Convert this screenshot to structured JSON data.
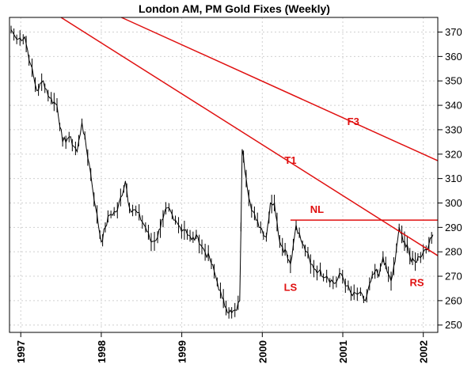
{
  "chart_data": {
    "type": "line",
    "title": "London AM, PM Gold Fixes (Weekly)",
    "ylim": [
      247,
      376
    ],
    "xlim": [
      1996.86,
      2002.18
    ],
    "yticks": [
      250,
      260,
      270,
      280,
      290,
      300,
      310,
      320,
      330,
      340,
      350,
      360,
      370
    ],
    "xticks": [
      "1997",
      "1998",
      "1999",
      "2000",
      "2001",
      "2002"
    ],
    "grid": true,
    "y_axis_side": "right",
    "price_anchors": [
      [
        1996.88,
        371
      ],
      [
        1996.95,
        367
      ],
      [
        1997.05,
        368
      ],
      [
        1997.12,
        357
      ],
      [
        1997.2,
        346
      ],
      [
        1997.28,
        350
      ],
      [
        1997.36,
        343
      ],
      [
        1997.45,
        340
      ],
      [
        1997.52,
        325
      ],
      [
        1997.6,
        327
      ],
      [
        1997.7,
        321
      ],
      [
        1997.76,
        333
      ],
      [
        1997.85,
        316
      ],
      [
        1997.93,
        298
      ],
      [
        1998.0,
        284
      ],
      [
        1998.05,
        290
      ],
      [
        1998.1,
        295
      ],
      [
        1998.2,
        297
      ],
      [
        1998.3,
        309
      ],
      [
        1998.35,
        298
      ],
      [
        1998.45,
        296
      ],
      [
        1998.55,
        290
      ],
      [
        1998.62,
        284
      ],
      [
        1998.7,
        286
      ],
      [
        1998.75,
        293
      ],
      [
        1998.82,
        298
      ],
      [
        1998.9,
        293
      ],
      [
        1998.98,
        290
      ],
      [
        1999.05,
        289
      ],
      [
        1999.12,
        285
      ],
      [
        1999.2,
        286
      ],
      [
        1999.25,
        282
      ],
      [
        1999.35,
        277
      ],
      [
        1999.42,
        270
      ],
      [
        1999.5,
        261
      ],
      [
        1999.55,
        257
      ],
      [
        1999.62,
        255
      ],
      [
        1999.68,
        256
      ],
      [
        1999.72,
        260
      ],
      [
        1999.75,
        322
      ],
      [
        1999.8,
        310
      ],
      [
        1999.85,
        300
      ],
      [
        1999.92,
        293
      ],
      [
        1999.98,
        290
      ],
      [
        2000.05,
        286
      ],
      [
        2000.1,
        300
      ],
      [
        2000.15,
        300
      ],
      [
        2000.2,
        287
      ],
      [
        2000.25,
        282
      ],
      [
        2000.3,
        280
      ],
      [
        2000.35,
        275
      ],
      [
        2000.42,
        291
      ],
      [
        2000.5,
        283
      ],
      [
        2000.55,
        280
      ],
      [
        2000.6,
        275
      ],
      [
        2000.7,
        272
      ],
      [
        2000.8,
        270
      ],
      [
        2000.9,
        267
      ],
      [
        2000.98,
        271
      ],
      [
        2001.05,
        266
      ],
      [
        2001.12,
        262
      ],
      [
        2001.2,
        263
      ],
      [
        2001.28,
        260
      ],
      [
        2001.35,
        268
      ],
      [
        2001.4,
        272
      ],
      [
        2001.45,
        270
      ],
      [
        2001.5,
        278
      ],
      [
        2001.55,
        272
      ],
      [
        2001.6,
        268
      ],
      [
        2001.65,
        276
      ],
      [
        2001.7,
        290
      ],
      [
        2001.75,
        284
      ],
      [
        2001.8,
        283
      ],
      [
        2001.85,
        276
      ],
      [
        2001.9,
        276
      ],
      [
        2001.95,
        278
      ],
      [
        2002.0,
        280
      ],
      [
        2002.07,
        283
      ],
      [
        2002.12,
        287
      ]
    ],
    "trendlines": [
      {
        "name": "T1",
        "from": [
          1997.5,
          376
        ],
        "to": [
          2002.2,
          278
        ]
      },
      {
        "name": "F3",
        "from": [
          1998.25,
          376
        ],
        "to": [
          2002.2,
          317
        ]
      },
      {
        "name": "NL",
        "from": [
          2000.35,
          293
        ],
        "to": [
          2002.2,
          293
        ]
      }
    ],
    "annotations": [
      {
        "text": "F3",
        "x": 2001.13,
        "y": 332
      },
      {
        "text": "T1",
        "x": 2000.35,
        "y": 316
      },
      {
        "text": "NL",
        "x": 2000.68,
        "y": 296
      },
      {
        "text": "LS",
        "x": 2000.35,
        "y": 264
      },
      {
        "text": "RS",
        "x": 2001.92,
        "y": 266
      }
    ],
    "colors": {
      "price": "#000000",
      "trendline": "#e01010",
      "grid": "#d0d0d0"
    }
  }
}
